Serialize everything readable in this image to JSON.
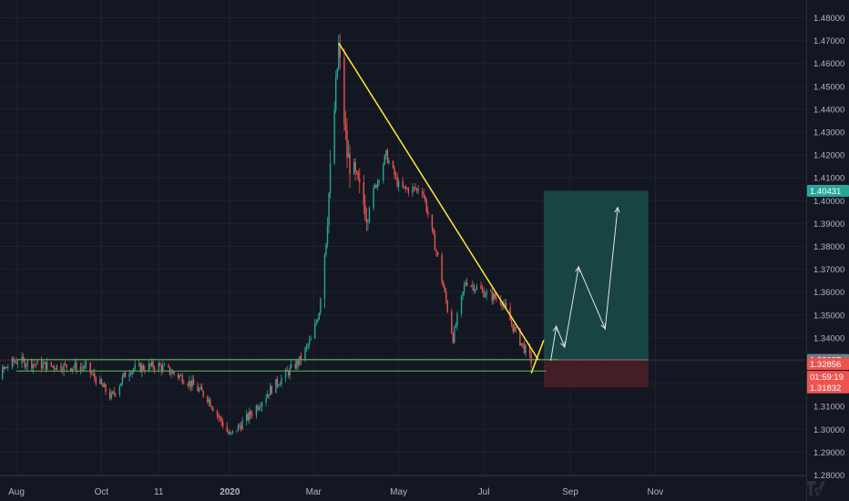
{
  "chart_data": {
    "type": "candlestick",
    "y_axis": {
      "ticks": [
        "1.48000",
        "1.47000",
        "1.46000",
        "1.45000",
        "1.44000",
        "1.43000",
        "1.42000",
        "1.41000",
        "1.40000",
        "1.39000",
        "1.38000",
        "1.37000",
        "1.36000",
        "1.35000",
        "1.34000",
        "1.33000",
        "1.32000",
        "1.31000",
        "1.30000",
        "1.29000",
        "1.28000"
      ],
      "range": [
        1.2795,
        1.4855
      ],
      "side": "right"
    },
    "x_axis": {
      "ticks": [
        "Aug",
        "Oct",
        "11",
        "2020",
        "Mar",
        "May",
        "Jul",
        "Sep",
        "Nov"
      ],
      "tick_bold": [
        "2020"
      ]
    },
    "grid": true,
    "colors": {
      "background": "#131722",
      "grid": "#1e2230",
      "axis_text": "#b2b5be",
      "candle_up": "#26a69a",
      "candle_down": "#ef5350",
      "trendline": "#ffeb3b",
      "support_lines": "#4caf50",
      "target_zone": "#1b4c4a",
      "stop_zone": "#4a1f27",
      "projection": "#e0e3eb"
    },
    "price_anchors": [
      {
        "date": "2019-07-01",
        "price": 1.307
      },
      {
        "date": "2019-07-15",
        "price": 1.322
      },
      {
        "date": "2019-07-31",
        "price": 1.33
      },
      {
        "date": "2019-08-20",
        "price": 1.328
      },
      {
        "date": "2019-09-20",
        "price": 1.327
      },
      {
        "date": "2019-10-08",
        "price": 1.314
      },
      {
        "date": "2019-10-20",
        "price": 1.326
      },
      {
        "date": "2019-11-10",
        "price": 1.328
      },
      {
        "date": "2019-11-30",
        "price": 1.322
      },
      {
        "date": "2019-12-16",
        "price": 1.314
      },
      {
        "date": "2020-01-01",
        "price": 1.297
      },
      {
        "date": "2020-01-15",
        "price": 1.306
      },
      {
        "date": "2020-01-31",
        "price": 1.318
      },
      {
        "date": "2020-02-20",
        "price": 1.33
      },
      {
        "date": "2020-02-29",
        "price": 1.34
      },
      {
        "date": "2020-03-05",
        "price": 1.352
      },
      {
        "date": "2020-03-10",
        "price": 1.385
      },
      {
        "date": "2020-03-19",
        "price": 1.467
      },
      {
        "date": "2020-03-25",
        "price": 1.42
      },
      {
        "date": "2020-04-08",
        "price": 1.395
      },
      {
        "date": "2020-04-22",
        "price": 1.42
      },
      {
        "date": "2020-05-02",
        "price": 1.405
      },
      {
        "date": "2020-05-18",
        "price": 1.405
      },
      {
        "date": "2020-05-29",
        "price": 1.375
      },
      {
        "date": "2020-06-09",
        "price": 1.34
      },
      {
        "date": "2020-06-18",
        "price": 1.365
      },
      {
        "date": "2020-07-01",
        "price": 1.36
      },
      {
        "date": "2020-07-14",
        "price": 1.356
      },
      {
        "date": "2020-07-24",
        "price": 1.342
      },
      {
        "date": "2020-08-04",
        "price": 1.33
      }
    ],
    "drawings": {
      "trendline": {
        "from": {
          "date": "2020-03-19",
          "price": 1.469
        },
        "to": {
          "date": "2020-08-09",
          "price": 1.3305
        }
      },
      "support_top": {
        "price": 1.3305
      },
      "support_bottom": {
        "price": 1.3255
      },
      "breakout_line": {
        "from": {
          "date": "2020-08-04",
          "price": 1.3245
        },
        "to": {
          "date": "2020-08-13",
          "price": 1.339
        }
      },
      "long_position": {
        "start": "2020-08-13",
        "end": "2020-10-27",
        "entry": 1.3304,
        "target": 1.40431,
        "stop": 1.31832
      },
      "projection_path": [
        {
          "date": "2020-08-18",
          "price": 1.33
        },
        {
          "date": "2020-08-22",
          "price": 1.345
        },
        {
          "date": "2020-08-28",
          "price": 1.336
        },
        {
          "date": "2020-09-07",
          "price": 1.371
        },
        {
          "date": "2020-09-26",
          "price": 1.344
        },
        {
          "date": "2020-10-05",
          "price": 1.397
        }
      ]
    },
    "price_labels": [
      {
        "text": "1.40431",
        "price": 1.40431,
        "kind": "target"
      },
      {
        "text": "1.33037",
        "price": 1.33037,
        "kind": "current"
      },
      {
        "text": "1.32856",
        "price": 1.32856,
        "kind": "last"
      },
      {
        "text": "01:59:19",
        "kind": "countdown"
      },
      {
        "text": "1.31832",
        "price": 1.31832,
        "kind": "stop"
      }
    ]
  },
  "footer": {
    "logo": "tradingview-logo"
  }
}
